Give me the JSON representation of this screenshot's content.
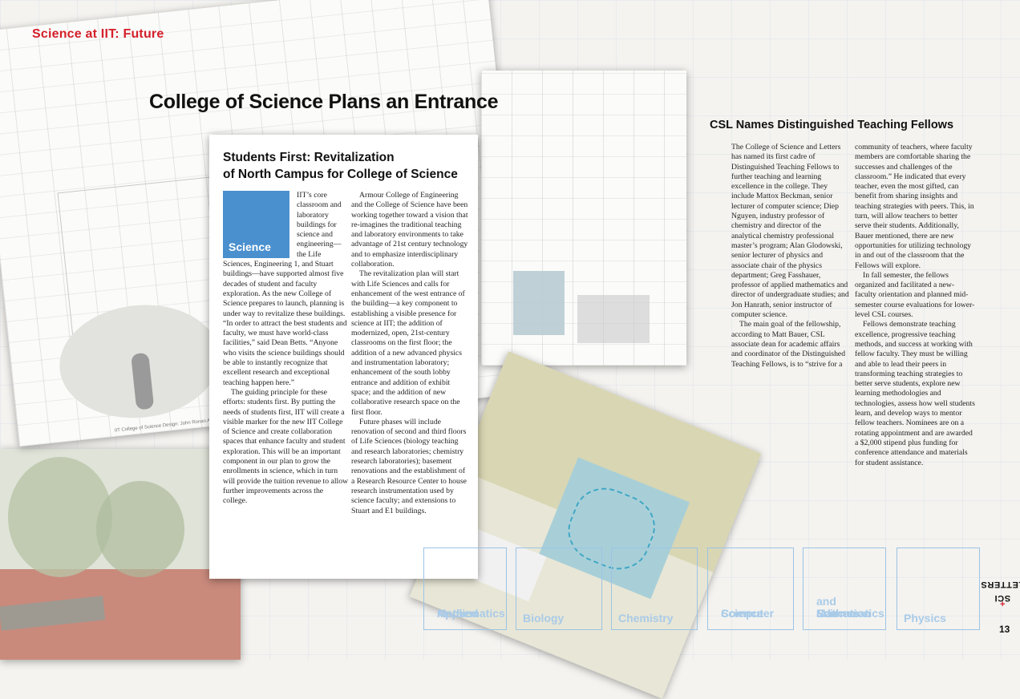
{
  "section_label": "Science at IIT: Future",
  "main_title": "College of Science Plans an Entrance",
  "image_credit": "IIT College of Science Design: John Ronan Architects",
  "article": {
    "title_line1": "Students First: Revitalization",
    "title_line2": "of North Campus for College of Science",
    "badge": "Science",
    "col1": [
      "IIT’s core classroom and laboratory buildings for science and engineering—the Life Sciences, Engineering 1, and Stuart buildings—have supported almost five decades of student and faculty exploration. As the new College of Science prepares to launch, planning is under way to revitalize these buildings. “In order to attract the best students and faculty, we must have world-class facilities,” said Dean Betts. “Anyone who visits the science buildings should be able to instantly recognize that excellent research and exceptional teaching happen here.”",
      "The guiding principle for these efforts: students first. By putting the needs of students first, IIT will create a visible marker for the new IIT College of Science and create collaboration spaces that enhance faculty and student exploration. This will be an important component in our plan to grow the enrollments in science, which in turn will provide the tuition revenue to allow further improvements across the college."
    ],
    "col2": [
      "Armour College of Engineering and the College of Science have been working together toward a vision that re-imagines the traditional teaching and laboratory environments to take advantage of 21st century technology and to emphasize interdisciplinary collaboration.",
      "The revitalization plan will start with Life Sciences and calls for enhancement of the west entrance of the building—a key component to establishing a visible presence for science at IIT; the addition of modernized, open, 21st-century classrooms on the first floor; the addition of a new advanced physics and instrumentation laboratory; enhancement of the south lobby entrance and addition of exhibit space; and the addition of new collaborative research space on the first floor.",
      "Future phases will include renovation of second and third floors of Life Sciences (biology teaching and research laboratories; chemistry research laboratories); basement renovations and the establishment of a Research Resource Center to house research instrumentation used by science faculty; and extensions to Stuart and E1 buildings."
    ]
  },
  "csl": {
    "title": "CSL Names Distinguished Teaching Fellows",
    "col1": [
      "The College of Science and Letters has named its first cadre of Distinguished Teaching Fellows to further teaching and learning excellence in the college. They include Mattox Beckman, senior lecturer of computer science; Diep Nguyen, industry professor of chemistry and director of the analytical chemistry professional master’s program; Alan Glodowski, senior lecturer of physics and associate chair of the physics department; Greg Fasshauer, professor of applied mathematics and director of undergraduate studies; and Jon Hanrath, senior instructor of computer science.",
      "The main goal of the fellowship, according to Matt Bauer, CSL associate dean for academic affairs and coordinator of the Distinguished Teaching Fellows, is to “strive for a"
    ],
    "col2": [
      "community of teachers, where faculty members are comfortable sharing the successes and challenges of the classroom.” He indicated that every teacher, even the most gifted, can benefit from sharing insights and teaching strategies with peers. This, in turn, will allow teachers to better serve their students. Additionally, Bauer mentioned, there are new opportunities for utilizing technology in and out of the classroom that the Fellows will explore.",
      "In fall semester, the fellows organized and facilitated a new-faculty orientation and planned mid-semester course evaluations for lower-level CSL courses.",
      "Fellows demonstrate teaching excellence, progressive teaching methods, and success at working with fellow faculty. They must be willing and able to lead their peers in transforming teaching strategies to better serve students, explore new learning methodologies and technologies, assess how well students learn, and develop ways to mentor fellow teachers. Nominees are on a rotating appointment and are awarded a $2,000 stipend plus funding for conference attendance and materials for student assistance."
    ]
  },
  "departments": [
    {
      "line1": "Applied",
      "line2": "Mathematics"
    },
    {
      "line1": "",
      "line2": "Biology"
    },
    {
      "line1": "",
      "line2": "Chemistry"
    },
    {
      "line1": "Computer",
      "line2": "Science"
    },
    {
      "line1": "Mathematics",
      "line2": "and Science",
      "line3": "Education"
    },
    {
      "line1": "",
      "line2": "Physics"
    }
  ],
  "footer": {
    "sci": "SCI",
    "plus": "+",
    "letters": "LETTERS",
    "page_number": "13"
  },
  "colors": {
    "accent_red": "#d41f2a",
    "science_blue": "#4a90cf",
    "dept_outline": "#9cc4e4"
  }
}
